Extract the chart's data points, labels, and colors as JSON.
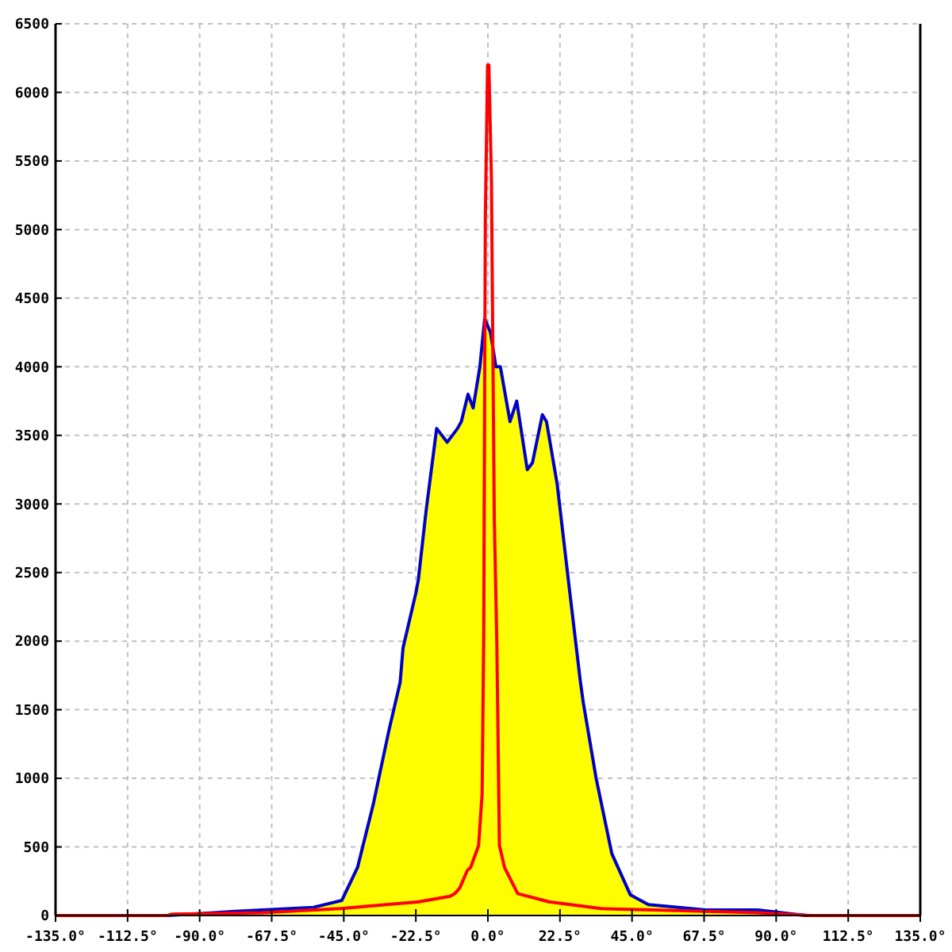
{
  "chart_data": {
    "type": "area",
    "xlim": [
      -135,
      135
    ],
    "ylim": [
      0,
      6500
    ],
    "xticks": [
      {
        "value": -135,
        "label": "-135.0°"
      },
      {
        "value": -112.5,
        "label": "-112.5°"
      },
      {
        "value": -90,
        "label": "-90.0°"
      },
      {
        "value": -67.5,
        "label": "-67.5°"
      },
      {
        "value": -45,
        "label": "-45.0°"
      },
      {
        "value": -22.5,
        "label": "-22.5°"
      },
      {
        "value": 0,
        "label": "0.0°"
      },
      {
        "value": 22.5,
        "label": "22.5°"
      },
      {
        "value": 45,
        "label": "45.0°"
      },
      {
        "value": 67.5,
        "label": "67.5°"
      },
      {
        "value": 90,
        "label": "90.0°"
      },
      {
        "value": 112.5,
        "label": "112.5°"
      },
      {
        "value": 135,
        "label": "135.0°"
      }
    ],
    "yticks": [
      0,
      500,
      1000,
      1500,
      2000,
      2500,
      3000,
      3500,
      4000,
      4500,
      5000,
      5500,
      6000,
      6500
    ],
    "grid": true,
    "series": [
      {
        "color": "#ffff00",
        "x": [
          -100,
          -78.9,
          -54.4,
          -45.6,
          -40.7,
          -35.8,
          -30.9,
          -27.4,
          -26.5,
          -22.5,
          -21.7,
          -19.3,
          -16,
          -12.7,
          -9.5,
          -8.3,
          -6.2,
          -4.6,
          -2.5,
          -1,
          0.8,
          2.5,
          3.9,
          6.9,
          9,
          12.3,
          13.9,
          17,
          18.3,
          21.6,
          25.6,
          28.9,
          29.8,
          33.8,
          38.7,
          44.5,
          50.1,
          68.1,
          84.3,
          99.2
        ],
        "values": [
          0,
          30,
          60,
          110,
          350,
          810,
          1350,
          1700,
          1950,
          2350,
          2450,
          2950,
          3550,
          3450,
          3550,
          3600,
          3800,
          3700,
          4000,
          4350,
          4250,
          4000,
          4000,
          3600,
          3750,
          3250,
          3300,
          3650,
          3600,
          3150,
          2350,
          1700,
          1550,
          1000,
          450,
          150,
          80,
          40,
          40,
          0
        ]
      },
      {
        "type": "line",
        "color": "#0000cc",
        "x": [
          -135,
          -100,
          -78.9,
          -54.4,
          -45.6,
          -40.7,
          -35.8,
          -30.9,
          -27.4,
          -26.5,
          -22.5,
          -21.7,
          -19.3,
          -16,
          -12.7,
          -9.5,
          -8.3,
          -6.2,
          -4.6,
          -2.5,
          -1,
          0.8,
          2.5,
          3.9,
          6.9,
          9,
          12.3,
          13.9,
          17,
          18.3,
          21.6,
          25.6,
          28.9,
          29.8,
          33.8,
          38.7,
          44.5,
          50.1,
          68.1,
          84.3,
          99.2,
          135
        ],
        "values": [
          0,
          0,
          30,
          60,
          110,
          350,
          810,
          1350,
          1700,
          1950,
          2350,
          2450,
          2950,
          3550,
          3450,
          3550,
          3600,
          3800,
          3700,
          4000,
          4350,
          4250,
          4000,
          4000,
          3600,
          3750,
          3250,
          3300,
          3650,
          3600,
          3150,
          2350,
          1700,
          1550,
          1000,
          450,
          150,
          80,
          40,
          40,
          0,
          0
        ]
      },
      {
        "type": "line",
        "color": "#ff0000",
        "x": [
          -135,
          -100,
          -98.6,
          -70.6,
          -46,
          -21.6,
          -11.8,
          -10.3,
          -8.8,
          -6.4,
          -5.4,
          -2.9,
          -1.8,
          -1.3,
          -0.8,
          -0.1,
          0.3,
          1.1,
          2,
          2.8,
          3.6,
          5.2,
          9.3,
          19.1,
          35.3,
          51.8,
          84.3,
          100.8,
          135
        ],
        "values": [
          0,
          0,
          10,
          20,
          50,
          100,
          140,
          160,
          200,
          330,
          350,
          510,
          890,
          2050,
          5090,
          6200,
          6200,
          5370,
          2900,
          1970,
          510,
          350,
          160,
          100,
          50,
          40,
          20,
          0,
          0
        ]
      }
    ]
  }
}
